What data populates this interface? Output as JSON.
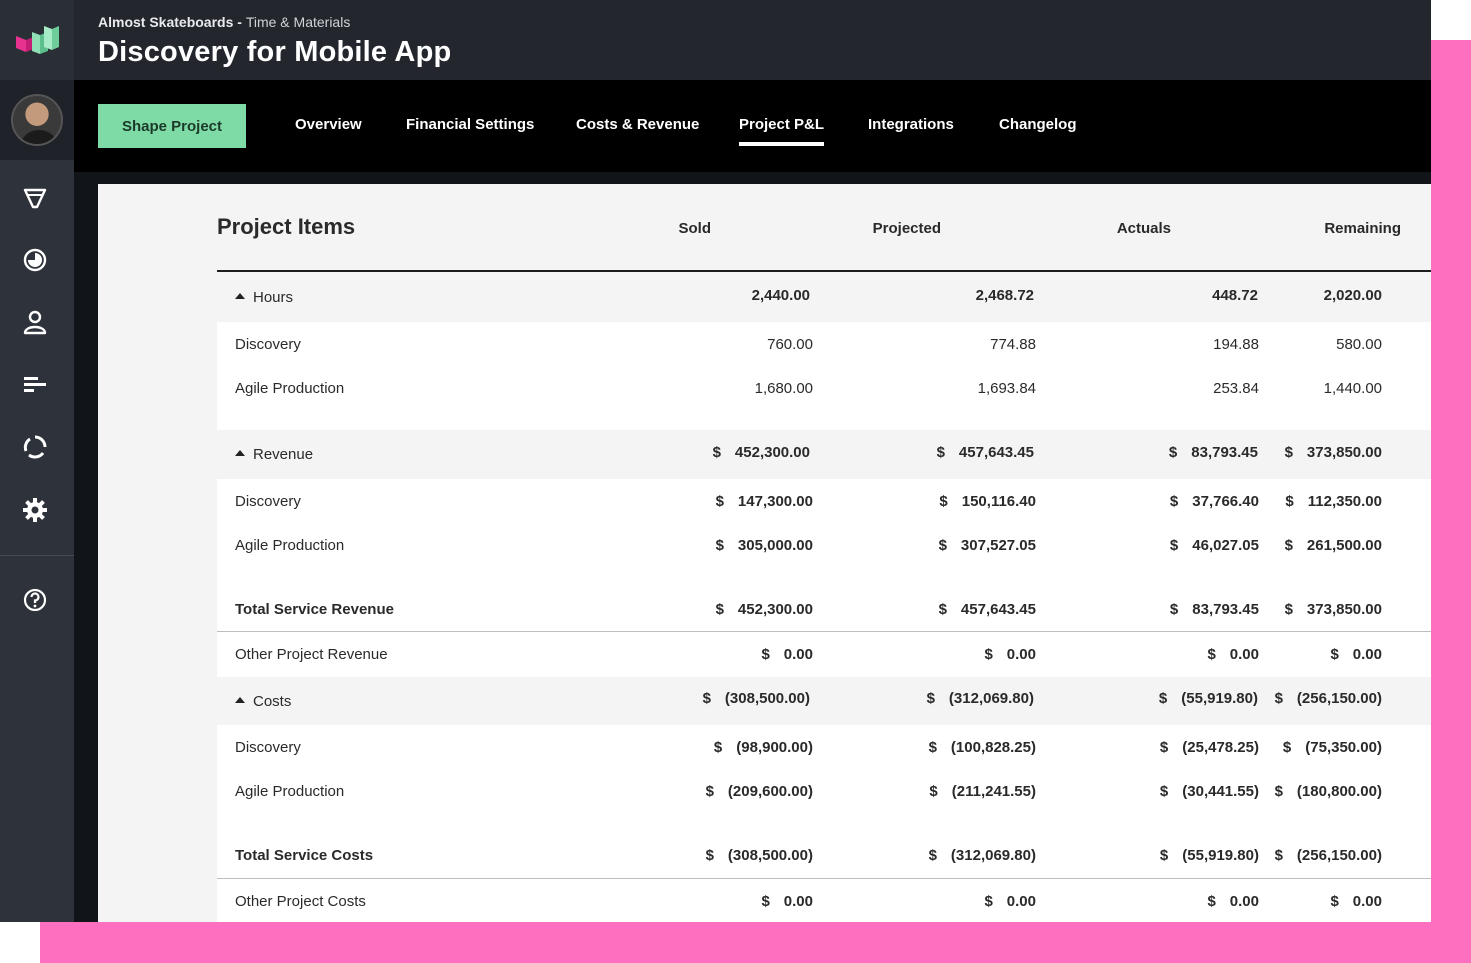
{
  "header": {
    "client": "Almost Skateboards",
    "separator": " - ",
    "project_type": "Time & Materials",
    "title": "Discovery for Mobile App"
  },
  "sidebar": {
    "icons": [
      "funnel-icon",
      "clock-icon",
      "user-icon",
      "list-icon",
      "cycle-icon",
      "gear-icon",
      "help-icon"
    ]
  },
  "tabs": {
    "shape_button": "Shape Project",
    "items": [
      "Overview",
      "Financial Settings",
      "Costs & Revenue",
      "Project P&L",
      "Integrations",
      "Changelog"
    ],
    "active": "Project P&L"
  },
  "table": {
    "title": "Project Items",
    "columns": [
      "Sold",
      "Projected",
      "Actuals",
      "Remaining"
    ],
    "hours": {
      "label": "Hours",
      "totals": [
        "2,440.00",
        "2,468.72",
        "448.72",
        "2,020.00"
      ],
      "rows": [
        {
          "label": "Discovery",
          "values": [
            "760.00",
            "774.88",
            "194.88",
            "580.00"
          ]
        },
        {
          "label": "Agile Production",
          "values": [
            "1,680.00",
            "1,693.84",
            "253.84",
            "1,440.00"
          ]
        }
      ]
    },
    "revenue": {
      "label": "Revenue",
      "totals": [
        "452,300.00",
        "457,643.45",
        "83,793.45",
        "373,850.00"
      ],
      "rows": [
        {
          "label": "Discovery",
          "values": [
            "147,300.00",
            "150,116.40",
            "37,766.40",
            "112,350.00"
          ]
        },
        {
          "label": "Agile Production",
          "values": [
            "305,000.00",
            "307,527.05",
            "46,027.05",
            "261,500.00"
          ]
        }
      ],
      "total_label": "Total Service Revenue",
      "total_values": [
        "452,300.00",
        "457,643.45",
        "83,793.45",
        "373,850.00"
      ],
      "other_label": "Other Project Revenue",
      "other_values": [
        "0.00",
        "0.00",
        "0.00",
        "0.00"
      ]
    },
    "costs": {
      "label": "Costs",
      "totals": [
        "(308,500.00)",
        "(312,069.80)",
        "(55,919.80)",
        "(256,150.00)"
      ],
      "rows": [
        {
          "label": "Discovery",
          "values": [
            "(98,900.00)",
            "(100,828.25)",
            "(25,478.25)",
            "(75,350.00)"
          ]
        },
        {
          "label": "Agile Production",
          "values": [
            "(209,600.00)",
            "(211,241.55)",
            "(30,441.55)",
            "(180,800.00)"
          ]
        }
      ],
      "total_label": "Total Service Costs",
      "total_values": [
        "(308,500.00)",
        "(312,069.80)",
        "(55,919.80)",
        "(256,150.00)"
      ],
      "other_label": "Other Project Costs",
      "other_values": [
        "0.00",
        "0.00",
        "0.00",
        "0.00"
      ]
    },
    "currency": "$"
  },
  "colors": {
    "accent_green": "#7fdba6",
    "frame_pink": "#ff6fc0",
    "sidebar": "#2e323a"
  }
}
